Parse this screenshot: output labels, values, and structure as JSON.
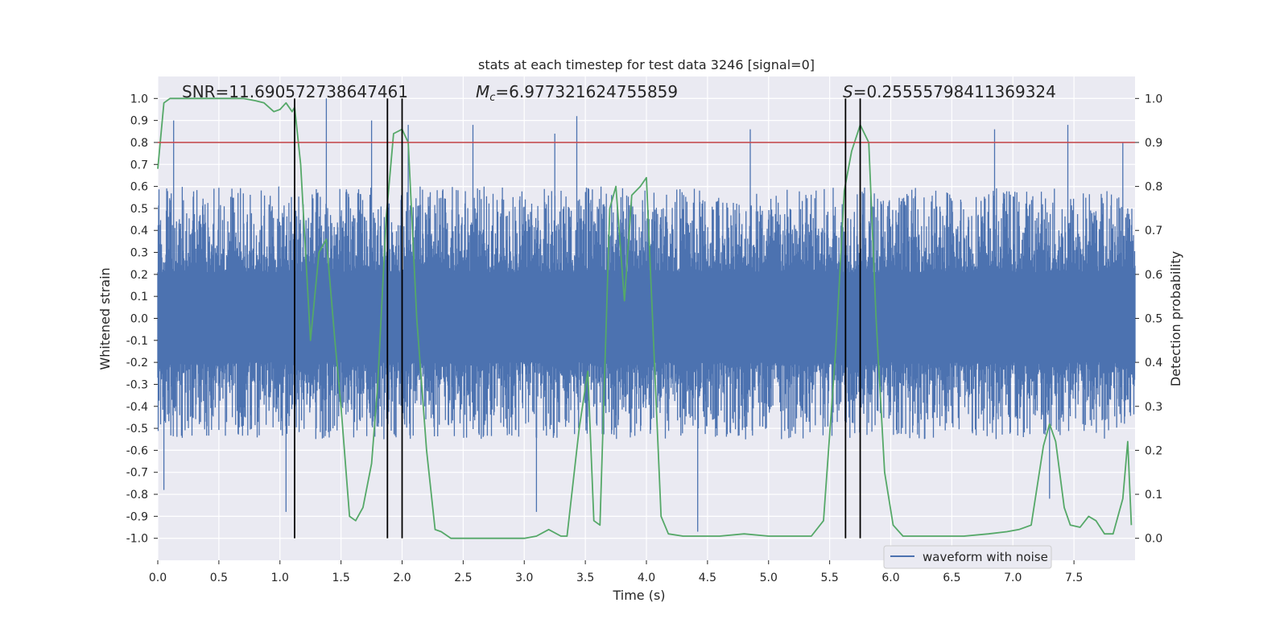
{
  "colors": {
    "figure_bg": "#ffffff",
    "axes_bg": "#eaeaf2",
    "grid": "#ffffff",
    "waveform": "#4c72b0",
    "probability": "#55a868",
    "threshold": "#c44e52",
    "markers": "#000000",
    "text": "#262626"
  },
  "chart_data": {
    "type": "line",
    "title": "stats at each timestep for test data 3246 [signal=0]",
    "xlabel": "Time (s)",
    "ylabel": "Whitened strain",
    "ylabel_right": "Detection probability",
    "xlim": [
      0,
      8
    ],
    "ylim": [
      -1.1,
      1.1
    ],
    "ylim_right": [
      -0.05,
      1.05
    ],
    "xticks": [
      0,
      0.5,
      1,
      1.5,
      2,
      2.5,
      3,
      3.5,
      4,
      4.5,
      5,
      5.5,
      6,
      6.5,
      7,
      7.5
    ],
    "xtick_labels": [
      "0.0",
      "0.5",
      "1.0",
      "1.5",
      "2.0",
      "2.5",
      "3.0",
      "3.5",
      "4.0",
      "4.5",
      "5.0",
      "5.5",
      "6.0",
      "6.5",
      "7.0",
      "7.5"
    ],
    "yticks": [
      1.0,
      0.9,
      0.8,
      0.7,
      0.6,
      0.5,
      0.4,
      0.3,
      0.2,
      0.1,
      0.0,
      -0.1,
      -0.2,
      -0.3,
      -0.4,
      -0.5,
      -0.6,
      -0.7,
      -0.8,
      -0.9,
      -1.0
    ],
    "ytick_labels": [
      "1.0",
      "0.9",
      "0.8",
      "0.7",
      "0.6",
      "0.5",
      "0.4",
      "0.3",
      "0.2",
      "0.1",
      "0.0",
      "-0.1",
      "-0.2",
      "-0.3",
      "-0.4",
      "-0.5",
      "-0.6",
      "-0.7",
      "-0.8",
      "-0.9",
      "-1.0"
    ],
    "yticks_right": [
      1.0,
      0.9,
      0.8,
      0.7,
      0.6,
      0.5,
      0.4,
      0.3,
      0.2,
      0.1,
      0.0
    ],
    "ytick_labels_right": [
      "1.0",
      "0.9",
      "0.8",
      "0.7",
      "0.6",
      "0.5",
      "0.4",
      "0.3",
      "0.2",
      "0.1",
      "0.0"
    ],
    "grid": true,
    "legend": {
      "entries": [
        "waveform with noise"
      ],
      "placement": "lower-right"
    },
    "annotations": {
      "snr": "SNR=11.690572738647461",
      "chirp_mass": "M",
      "chirp_mass_sub": "c",
      "chirp_mass_value": "=6.977321624755859",
      "s_symbol": "S",
      "s_value": "=0.25555798411369324"
    },
    "threshold_line": {
      "y": 0.8,
      "axis": "left"
    },
    "vertical_markers": {
      "x": [
        1.12,
        1.88,
        2.0,
        5.63,
        5.75
      ],
      "y_range": [
        0.0,
        1.0
      ],
      "axis": "right"
    },
    "waveform": {
      "name": "waveform with noise",
      "x_range": [
        0,
        8
      ],
      "core_envelope": [
        -0.2,
        0.21
      ],
      "typical_peak_range": [
        -0.55,
        0.6
      ],
      "peaks": [
        {
          "x": 0.13,
          "y": 0.9
        },
        {
          "x": 0.05,
          "y": -0.78
        },
        {
          "x": 1.38,
          "y": 1.0
        },
        {
          "x": 1.12,
          "y": 0.96
        },
        {
          "x": 1.05,
          "y": -0.88
        },
        {
          "x": 3.43,
          "y": 0.92
        },
        {
          "x": 5.63,
          "y": 0.83
        },
        {
          "x": 7.45,
          "y": 0.88
        },
        {
          "x": 4.42,
          "y": -0.97
        },
        {
          "x": 1.75,
          "y": 0.9
        },
        {
          "x": 2.05,
          "y": 0.88
        },
        {
          "x": 2.58,
          "y": 0.88
        },
        {
          "x": 3.1,
          "y": -0.88
        },
        {
          "x": 4.85,
          "y": 0.86
        },
        {
          "x": 6.85,
          "y": 0.86
        },
        {
          "x": 7.9,
          "y": 0.8
        },
        {
          "x": 7.3,
          "y": -0.82
        },
        {
          "x": 3.25,
          "y": 0.84
        }
      ]
    },
    "series": [
      {
        "name": "",
        "axis": "right",
        "x": [
          0,
          0.05,
          0.1,
          0.2,
          0.3,
          0.4,
          0.5,
          0.6,
          0.7,
          0.8,
          0.87,
          0.95,
          1.0,
          1.05,
          1.1,
          1.12,
          1.17,
          1.25,
          1.32,
          1.38,
          1.45,
          1.5,
          1.57,
          1.62,
          1.68,
          1.75,
          1.8,
          1.87,
          1.93,
          2.0,
          2.05,
          2.12,
          2.2,
          2.27,
          2.32,
          2.4,
          2.6,
          2.8,
          3.0,
          3.1,
          3.2,
          3.3,
          3.35,
          3.45,
          3.52,
          3.57,
          3.62,
          3.7,
          3.75,
          3.82,
          3.88,
          3.95,
          4.0,
          4.05,
          4.12,
          4.18,
          4.3,
          4.4,
          4.6,
          4.8,
          5.0,
          5.2,
          5.35,
          5.45,
          5.55,
          5.62,
          5.68,
          5.75,
          5.82,
          5.88,
          5.95,
          6.02,
          6.1,
          6.3,
          6.6,
          6.8,
          6.95,
          7.05,
          7.15,
          7.25,
          7.3,
          7.35,
          7.42,
          7.47,
          7.55,
          7.62,
          7.68,
          7.75,
          7.82,
          7.9,
          7.94,
          7.97
        ],
        "y": [
          0.84,
          0.99,
          1.0,
          1.0,
          1.0,
          1.0,
          1.0,
          1.0,
          1.0,
          0.995,
          0.99,
          0.97,
          0.975,
          0.99,
          0.97,
          0.98,
          0.85,
          0.45,
          0.65,
          0.68,
          0.45,
          0.3,
          0.05,
          0.04,
          0.07,
          0.17,
          0.35,
          0.73,
          0.92,
          0.93,
          0.9,
          0.5,
          0.2,
          0.02,
          0.015,
          0.0,
          0.0,
          0.0,
          0.0,
          0.005,
          0.02,
          0.005,
          0.005,
          0.25,
          0.38,
          0.04,
          0.03,
          0.75,
          0.8,
          0.54,
          0.78,
          0.8,
          0.82,
          0.5,
          0.05,
          0.01,
          0.005,
          0.005,
          0.005,
          0.01,
          0.005,
          0.005,
          0.005,
          0.04,
          0.43,
          0.79,
          0.88,
          0.94,
          0.9,
          0.5,
          0.15,
          0.03,
          0.005,
          0.005,
          0.005,
          0.01,
          0.015,
          0.02,
          0.03,
          0.21,
          0.26,
          0.22,
          0.07,
          0.03,
          0.025,
          0.05,
          0.04,
          0.01,
          0.01,
          0.09,
          0.22,
          0.03
        ]
      }
    ]
  }
}
